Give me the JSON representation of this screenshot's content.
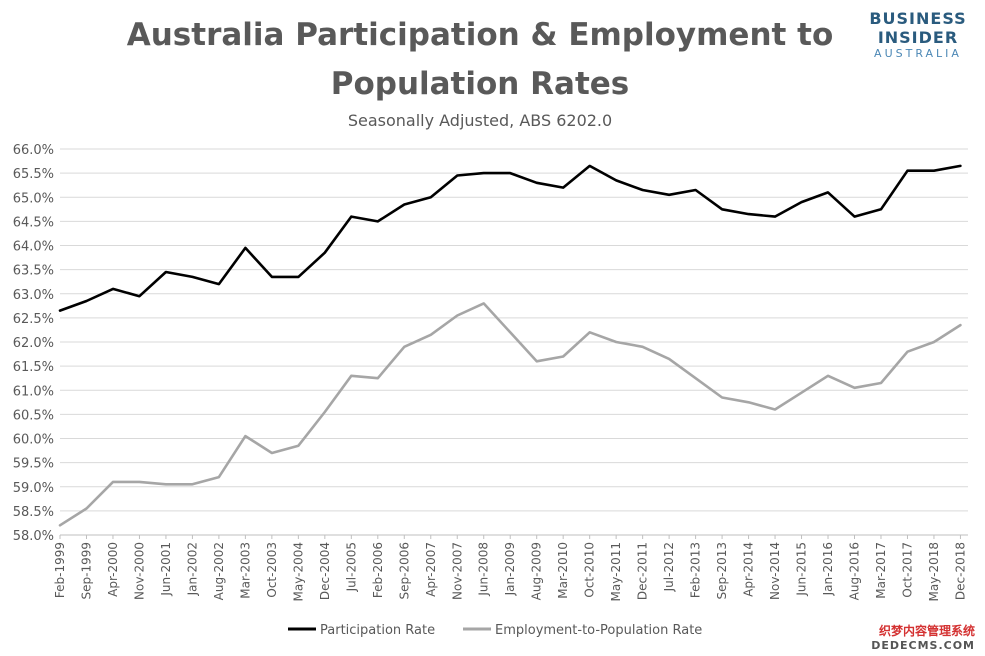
{
  "logo": {
    "line1": "BUSINESS",
    "line2": "INSIDER",
    "line3": "AUSTRALIA"
  },
  "watermark": {
    "line1": "织梦内容管理系统",
    "line2": "DEDECMS.COM"
  },
  "colors": {
    "participation": "#000000",
    "employment": "#a6a6a6",
    "grid": "#d9d9d9",
    "text": "#595959"
  },
  "chart_data": {
    "type": "line",
    "title_line1": "Australia Participation & Employment to",
    "title_line2": "Population Rates",
    "subtitle": "Seasonally Adjusted, ABS 6202.0",
    "xlabel": "",
    "ylabel": "",
    "ylim": [
      58.0,
      66.0
    ],
    "y_ticks": [
      "58.0%",
      "58.5%",
      "59.0%",
      "59.5%",
      "60.0%",
      "60.5%",
      "61.0%",
      "61.5%",
      "62.0%",
      "62.5%",
      "63.0%",
      "63.5%",
      "64.0%",
      "64.5%",
      "65.0%",
      "65.5%",
      "66.0%"
    ],
    "x_ticks": [
      "Feb-1999",
      "Sep-1999",
      "Apr-2000",
      "Nov-2000",
      "Jun-2001",
      "Jan-2002",
      "Aug-2002",
      "Mar-2003",
      "Oct-2003",
      "May-2004",
      "Dec-2004",
      "Jul-2005",
      "Feb-2006",
      "Sep-2006",
      "Apr-2007",
      "Nov-2007",
      "Jun-2008",
      "Jan-2009",
      "Aug-2009",
      "Mar-2010",
      "Oct-2010",
      "May-2011",
      "Dec-2011",
      "Jul-2012",
      "Feb-2013",
      "Sep-2013",
      "Apr-2014",
      "Nov-2014",
      "Jun-2015",
      "Jan-2016",
      "Aug-2016",
      "Mar-2017",
      "Oct-2017",
      "May-2018",
      "Dec-2018"
    ],
    "grid": true,
    "legend_position": "bottom",
    "series": [
      {
        "name": "Participation Rate",
        "color": "#000000",
        "points": [
          [
            "Feb-1999",
            62.65
          ],
          [
            "Sep-1999",
            62.85
          ],
          [
            "Apr-2000",
            63.1
          ],
          [
            "Nov-2000",
            62.95
          ],
          [
            "Jun-2001",
            63.45
          ],
          [
            "Jan-2002",
            63.35
          ],
          [
            "Aug-2002",
            63.2
          ],
          [
            "Mar-2003",
            63.95
          ],
          [
            "Oct-2003",
            63.35
          ],
          [
            "May-2004",
            63.35
          ],
          [
            "Dec-2004",
            63.85
          ],
          [
            "Jul-2005",
            64.6
          ],
          [
            "Feb-2006",
            64.5
          ],
          [
            "Sep-2006",
            64.85
          ],
          [
            "Apr-2007",
            65.0
          ],
          [
            "Nov-2007",
            65.45
          ],
          [
            "Jun-2008",
            65.5
          ],
          [
            "Jan-2009",
            65.5
          ],
          [
            "Aug-2009",
            65.3
          ],
          [
            "Mar-2010",
            65.2
          ],
          [
            "Oct-2010",
            65.65
          ],
          [
            "May-2011",
            65.35
          ],
          [
            "Dec-2011",
            65.15
          ],
          [
            "Jul-2012",
            65.05
          ],
          [
            "Feb-2013",
            65.15
          ],
          [
            "Sep-2013",
            64.75
          ],
          [
            "Apr-2014",
            64.65
          ],
          [
            "Nov-2014",
            64.6
          ],
          [
            "Jun-2015",
            64.9
          ],
          [
            "Jan-2016",
            65.1
          ],
          [
            "Aug-2016",
            64.6
          ],
          [
            "Mar-2017",
            64.75
          ],
          [
            "Oct-2017",
            65.55
          ],
          [
            "May-2018",
            65.55
          ],
          [
            "Dec-2018",
            65.65
          ]
        ]
      },
      {
        "name": "Employment-to-Population Rate",
        "color": "#a6a6a6",
        "points": [
          [
            "Feb-1999",
            58.2
          ],
          [
            "Sep-1999",
            58.55
          ],
          [
            "Apr-2000",
            59.1
          ],
          [
            "Nov-2000",
            59.1
          ],
          [
            "Jun-2001",
            59.05
          ],
          [
            "Jan-2002",
            59.05
          ],
          [
            "Aug-2002",
            59.2
          ],
          [
            "Mar-2003",
            60.05
          ],
          [
            "Oct-2003",
            59.7
          ],
          [
            "May-2004",
            59.85
          ],
          [
            "Dec-2004",
            60.55
          ],
          [
            "Jul-2005",
            61.3
          ],
          [
            "Feb-2006",
            61.25
          ],
          [
            "Sep-2006",
            61.9
          ],
          [
            "Apr-2007",
            62.15
          ],
          [
            "Nov-2007",
            62.55
          ],
          [
            "Jun-2008",
            62.8
          ],
          [
            "Jan-2009",
            62.2
          ],
          [
            "Aug-2009",
            61.6
          ],
          [
            "Mar-2010",
            61.7
          ],
          [
            "Oct-2010",
            62.2
          ],
          [
            "May-2011",
            62.0
          ],
          [
            "Dec-2011",
            61.9
          ],
          [
            "Jul-2012",
            61.65
          ],
          [
            "Feb-2013",
            61.25
          ],
          [
            "Sep-2013",
            60.85
          ],
          [
            "Apr-2014",
            60.75
          ],
          [
            "Nov-2014",
            60.6
          ],
          [
            "Jun-2015",
            60.95
          ],
          [
            "Jan-2016",
            61.3
          ],
          [
            "Aug-2016",
            61.05
          ],
          [
            "Mar-2017",
            61.15
          ],
          [
            "Oct-2017",
            61.8
          ],
          [
            "May-2018",
            62.0
          ],
          [
            "Dec-2018",
            62.35
          ]
        ]
      }
    ]
  }
}
